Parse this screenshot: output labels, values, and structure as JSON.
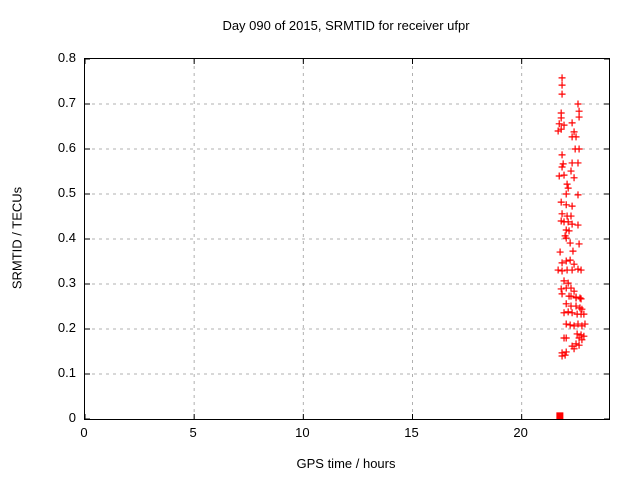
{
  "title": "Day 090 of 2015, SRMTID for receiver ufpr",
  "colors": {
    "marker": "#ff0000",
    "grid": "#b0b0b0",
    "axis": "#000000",
    "background": "#ffffff"
  },
  "chart_data": {
    "type": "scatter",
    "title": "Day 090 of 2015, SRMTID for receiver ufpr",
    "xlabel": "GPS time / hours",
    "ylabel": "SRMTID / TECUs",
    "xlim": [
      0,
      24
    ],
    "ylim": [
      0,
      0.8
    ],
    "x_ticks": [
      0,
      5,
      10,
      15,
      20
    ],
    "x_tick_labels": [
      "0",
      "5",
      "10",
      "15",
      "20"
    ],
    "y_ticks": [
      0,
      0.1,
      0.2,
      0.3,
      0.4,
      0.5,
      0.6,
      0.7,
      0.8
    ],
    "y_tick_labels": [
      "0",
      "0.1",
      "0.2",
      "0.3",
      "0.4",
      "0.5",
      "0.6",
      "0.7",
      "0.8"
    ],
    "grid": true,
    "legend_position": "none",
    "series": [
      {
        "name": "srmtid",
        "marker": "plus",
        "color": "#ff0000",
        "points": [
          [
            21.85,
            0.758
          ],
          [
            21.85,
            0.742
          ],
          [
            21.85,
            0.722
          ],
          [
            22.58,
            0.7
          ],
          [
            22.63,
            0.684
          ],
          [
            22.63,
            0.671
          ],
          [
            21.81,
            0.68
          ],
          [
            21.81,
            0.669
          ],
          [
            21.72,
            0.656
          ],
          [
            21.94,
            0.653
          ],
          [
            21.67,
            0.64
          ],
          [
            21.81,
            0.644
          ],
          [
            22.31,
            0.658
          ],
          [
            22.4,
            0.638
          ],
          [
            22.31,
            0.627
          ],
          [
            22.49,
            0.627
          ],
          [
            22.45,
            0.6
          ],
          [
            22.63,
            0.6
          ],
          [
            21.85,
            0.587
          ],
          [
            21.9,
            0.567
          ],
          [
            21.85,
            0.56
          ],
          [
            22.31,
            0.569
          ],
          [
            22.58,
            0.569
          ],
          [
            22.26,
            0.551
          ],
          [
            21.72,
            0.54
          ],
          [
            21.94,
            0.542
          ],
          [
            22.4,
            0.536
          ],
          [
            22.08,
            0.522
          ],
          [
            22.13,
            0.513
          ],
          [
            22.04,
            0.5
          ],
          [
            22.58,
            0.498
          ],
          [
            21.81,
            0.482
          ],
          [
            22.04,
            0.476
          ],
          [
            22.31,
            0.473
          ],
          [
            21.85,
            0.456
          ],
          [
            22.08,
            0.451
          ],
          [
            22.26,
            0.451
          ],
          [
            21.81,
            0.44
          ],
          [
            21.94,
            0.438
          ],
          [
            22.13,
            0.438
          ],
          [
            22.31,
            0.433
          ],
          [
            22.58,
            0.431
          ],
          [
            22.04,
            0.42
          ],
          [
            22.17,
            0.418
          ],
          [
            21.99,
            0.407
          ],
          [
            22.04,
            0.402
          ],
          [
            22.22,
            0.391
          ],
          [
            22.63,
            0.389
          ],
          [
            21.76,
            0.371
          ],
          [
            22.35,
            0.373
          ],
          [
            21.85,
            0.347
          ],
          [
            22.04,
            0.351
          ],
          [
            22.22,
            0.353
          ],
          [
            22.4,
            0.344
          ],
          [
            21.67,
            0.331
          ],
          [
            21.85,
            0.329
          ],
          [
            22.08,
            0.331
          ],
          [
            22.31,
            0.331
          ],
          [
            22.58,
            0.333
          ],
          [
            22.72,
            0.331
          ],
          [
            21.94,
            0.307
          ],
          [
            22.13,
            0.302
          ],
          [
            21.81,
            0.289
          ],
          [
            22.04,
            0.291
          ],
          [
            22.26,
            0.291
          ],
          [
            22.4,
            0.284
          ],
          [
            22.17,
            0.273
          ],
          [
            22.49,
            0.269
          ],
          [
            22.72,
            0.267
          ],
          [
            21.85,
            0.278
          ],
          [
            22.26,
            0.273
          ],
          [
            22.49,
            0.271
          ],
          [
            22.67,
            0.269
          ],
          [
            22.04,
            0.256
          ],
          [
            22.26,
            0.251
          ],
          [
            22.49,
            0.251
          ],
          [
            22.67,
            0.247
          ],
          [
            22.76,
            0.244
          ],
          [
            21.94,
            0.236
          ],
          [
            22.13,
            0.238
          ],
          [
            22.31,
            0.236
          ],
          [
            22.54,
            0.233
          ],
          [
            22.72,
            0.233
          ],
          [
            22.85,
            0.233
          ],
          [
            22.04,
            0.211
          ],
          [
            22.22,
            0.209
          ],
          [
            22.4,
            0.207
          ],
          [
            22.58,
            0.211
          ],
          [
            22.76,
            0.207
          ],
          [
            22.9,
            0.211
          ],
          [
            22.04,
            0.18
          ],
          [
            22.63,
            0.18
          ],
          [
            22.76,
            0.176
          ],
          [
            21.94,
            0.18
          ],
          [
            22.54,
            0.189
          ],
          [
            22.72,
            0.187
          ],
          [
            22.85,
            0.184
          ],
          [
            22.31,
            0.162
          ],
          [
            22.49,
            0.167
          ],
          [
            22.63,
            0.164
          ],
          [
            21.85,
            0.147
          ],
          [
            22.04,
            0.149
          ],
          [
            22.4,
            0.156
          ],
          [
            21.85,
            0.14
          ],
          [
            21.99,
            0.142
          ]
        ]
      },
      {
        "name": "zero-marker",
        "marker": "filled-square",
        "color": "#ff0000",
        "points": [
          [
            21.75,
            0.007
          ]
        ]
      }
    ]
  }
}
